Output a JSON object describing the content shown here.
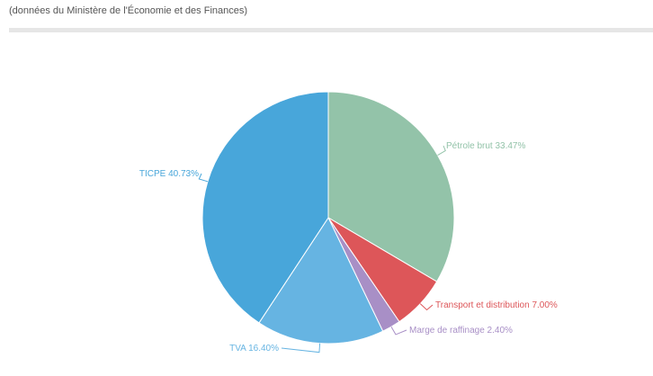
{
  "header": {
    "subtitle": "(données du Ministère de l'Économie et des Finances)"
  },
  "chart_data": {
    "type": "pie",
    "title": "",
    "slices": [
      {
        "label": "Pétrole brut",
        "value": 33.47,
        "display": "Pétrole brut 33.47%",
        "color": "#93c3a9"
      },
      {
        "label": "Transport et distribution",
        "value": 7.0,
        "display": "Transport et distribution 7.00%",
        "color": "#dd5659"
      },
      {
        "label": "Marge de raffinage",
        "value": 2.4,
        "display": "Marge de raffinage 2.40%",
        "color": "#a88fc6"
      },
      {
        "label": "TVA",
        "value": 16.4,
        "display": "TVA 16.40%",
        "color": "#66b4e2"
      },
      {
        "label": "TICPE",
        "value": 40.73,
        "display": "TICPE 40.73%",
        "color": "#48a6da"
      }
    ]
  }
}
